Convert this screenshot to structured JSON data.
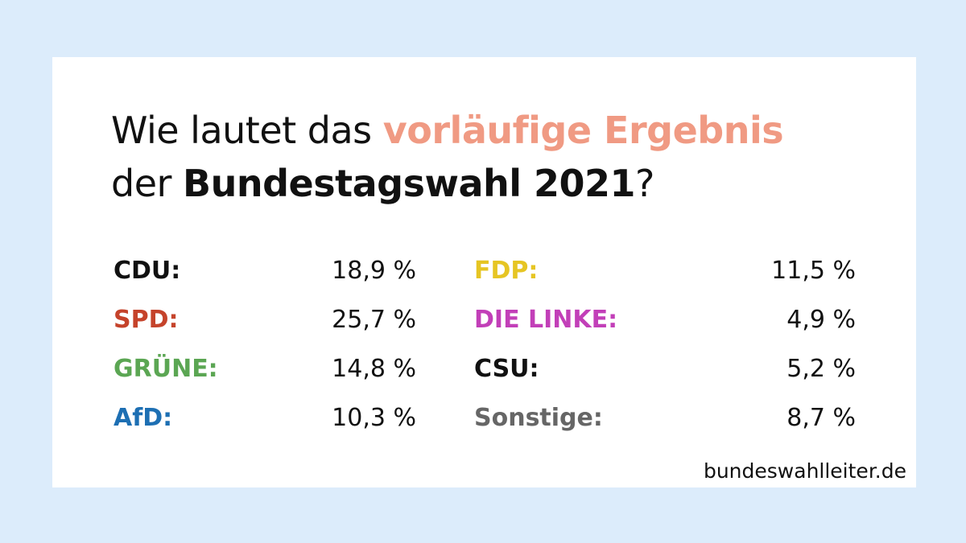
{
  "title": {
    "part1": "Wie lautet das ",
    "highlight": "vorläufige Ergebnis",
    "part2": "der ",
    "strong": "Bundestagswahl 2021",
    "part3": "?"
  },
  "source": "bundeswahlleiter.de",
  "chart_data": {
    "type": "table",
    "title": "Wie lautet das vorläufige Ergebnis der Bundestagswahl 2021?",
    "unit": "%",
    "rows": [
      {
        "party": "CDU:",
        "value": 18.9,
        "display": "18,9 %",
        "color": "#111111"
      },
      {
        "party": "SPD:",
        "value": 25.7,
        "display": "25,7 %",
        "color": "#c5432b"
      },
      {
        "party": "GRÜNE:",
        "value": 14.8,
        "display": "14,8 %",
        "color": "#5ba653"
      },
      {
        "party": "AfD:",
        "value": 10.3,
        "display": "10,3 %",
        "color": "#1d6fb3"
      },
      {
        "party": "FDP:",
        "value": 11.5,
        "display": "11,5 %",
        "color": "#e6c523"
      },
      {
        "party": "DIE LINKE:",
        "value": 4.9,
        "display": "4,9 %",
        "color": "#c23fb8"
      },
      {
        "party": "CSU:",
        "value": 5.2,
        "display": "5,2 %",
        "color": "#111111"
      },
      {
        "party": "Sonstige:",
        "value": 8.7,
        "display": "8,7 %",
        "color": "#666666"
      }
    ]
  }
}
